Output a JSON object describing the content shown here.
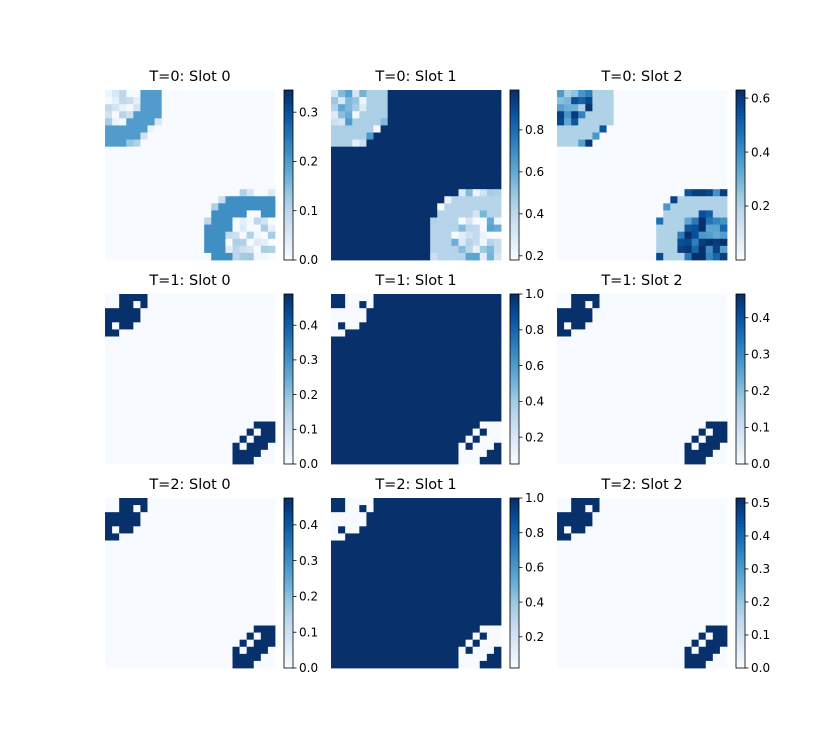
{
  "figure": {
    "grid_rows": 3,
    "grid_cols": 3,
    "colormap": "Blues",
    "colormap_stops": [
      "#f7fbff",
      "#deebf7",
      "#c6dbef",
      "#9ecae1",
      "#6baed6",
      "#4292c6",
      "#2171b5",
      "#08519c",
      "#08306b"
    ]
  },
  "chart_data": [
    {
      "type": "heatmap",
      "title": "T=0: Slot 0",
      "resolution": 24,
      "background": 0.0,
      "clim": [
        0.0,
        0.345
      ],
      "colorbar_ticks": [
        "0.0",
        "0.1",
        "0.2",
        "0.3"
      ],
      "colorbar_tick_values": [
        0.0,
        0.1,
        0.2,
        0.3
      ],
      "blobs": [
        {
          "center": [
            0.07,
            0.06
          ],
          "radius": 0.28,
          "fill": 0.06,
          "noise": 0.08,
          "ring_value": 0.2,
          "ring_width": 0.06
        },
        {
          "center": [
            0.87,
            0.88
          ],
          "radius": 0.3,
          "fill": 0.05,
          "noise": 0.08,
          "ring_value": 0.22,
          "ring_width": 0.06
        }
      ]
    },
    {
      "type": "heatmap",
      "title": "T=0: Slot 1",
      "resolution": 24,
      "background": 1.0,
      "clim": [
        0.18,
        0.99
      ],
      "colorbar_ticks": [
        "0.2",
        "0.4",
        "0.6",
        "0.8"
      ],
      "colorbar_tick_values": [
        0.2,
        0.4,
        0.6,
        0.8
      ],
      "blobs": [
        {
          "center": [
            0.07,
            0.06
          ],
          "radius": 0.28,
          "fill": 0.42,
          "noise": 0.25,
          "ring_value": 0.45,
          "ring_width": 0.06
        },
        {
          "center": [
            0.87,
            0.88
          ],
          "radius": 0.3,
          "fill": 0.38,
          "noise": 0.25,
          "ring_value": 0.42,
          "ring_width": 0.06
        }
      ]
    },
    {
      "type": "heatmap",
      "title": "T=0: Slot 2",
      "resolution": 24,
      "background": 0.0,
      "clim": [
        0.0,
        0.63
      ],
      "colorbar_ticks": [
        "0.2",
        "0.4",
        "0.6"
      ],
      "colorbar_tick_values": [
        0.2,
        0.4,
        0.6
      ],
      "blobs": [
        {
          "center": [
            0.07,
            0.06
          ],
          "radius": 0.28,
          "fill": 0.42,
          "noise": 0.22,
          "ring_value": 0.2,
          "ring_width": 0.06
        },
        {
          "center": [
            0.87,
            0.88
          ],
          "radius": 0.3,
          "fill": 0.5,
          "noise": 0.18,
          "ring_value": 0.2,
          "ring_width": 0.06
        }
      ]
    },
    {
      "type": "heatmap",
      "title": "T=1: Slot 0",
      "resolution": 24,
      "background": 0.0,
      "clim": [
        0.0,
        0.49
      ],
      "colorbar_ticks": [
        "0.0",
        "0.1",
        "0.2",
        "0.3",
        "0.4"
      ],
      "colorbar_tick_values": [
        0.0,
        0.1,
        0.2,
        0.3,
        0.4
      ],
      "blobs": [
        {
          "center": [
            0.0,
            0.0
          ],
          "radius": 0.2,
          "fill": 0.0,
          "noise": 0.0,
          "ring_value": 0.49,
          "ring_width": 0.045
        },
        {
          "center": [
            1.0,
            1.0
          ],
          "radius": 0.22,
          "fill": 0.0,
          "noise": 0.0,
          "ring_value": 0.49,
          "ring_width": 0.045
        }
      ]
    },
    {
      "type": "heatmap",
      "title": "T=1: Slot 1",
      "resolution": 24,
      "background": 1.0,
      "clim": [
        0.05,
        1.0
      ],
      "colorbar_ticks": [
        "0.2",
        "0.4",
        "0.6",
        "0.8",
        "1.0"
      ],
      "colorbar_tick_values": [
        0.2,
        0.4,
        0.6,
        0.8,
        1.0
      ],
      "blobs": [
        {
          "center": [
            0.0,
            0.0
          ],
          "radius": 0.2,
          "fill": 1.0,
          "noise": 0.0,
          "ring_value": 0.05,
          "ring_width": 0.045
        },
        {
          "center": [
            1.0,
            1.0
          ],
          "radius": 0.22,
          "fill": 1.0,
          "noise": 0.0,
          "ring_value": 0.05,
          "ring_width": 0.045
        }
      ]
    },
    {
      "type": "heatmap",
      "title": "T=1: Slot 2",
      "resolution": 24,
      "background": 0.0,
      "clim": [
        0.0,
        0.465
      ],
      "colorbar_ticks": [
        "0.0",
        "0.1",
        "0.2",
        "0.3",
        "0.4"
      ],
      "colorbar_tick_values": [
        0.0,
        0.1,
        0.2,
        0.3,
        0.4
      ],
      "blobs": [
        {
          "center": [
            0.0,
            0.0
          ],
          "radius": 0.2,
          "fill": 0.0,
          "noise": 0.0,
          "ring_value": 0.465,
          "ring_width": 0.045
        },
        {
          "center": [
            1.0,
            1.0
          ],
          "radius": 0.22,
          "fill": 0.0,
          "noise": 0.0,
          "ring_value": 0.465,
          "ring_width": 0.045
        }
      ]
    },
    {
      "type": "heatmap",
      "title": "T=2: Slot 0",
      "resolution": 24,
      "background": 0.0,
      "clim": [
        0.0,
        0.475
      ],
      "colorbar_ticks": [
        "0.0",
        "0.1",
        "0.2",
        "0.3",
        "0.4"
      ],
      "colorbar_tick_values": [
        0.0,
        0.1,
        0.2,
        0.3,
        0.4
      ],
      "blobs": [
        {
          "center": [
            0.0,
            0.0
          ],
          "radius": 0.2,
          "fill": 0.0,
          "noise": 0.0,
          "ring_value": 0.475,
          "ring_width": 0.045
        },
        {
          "center": [
            1.0,
            1.0
          ],
          "radius": 0.22,
          "fill": 0.0,
          "noise": 0.0,
          "ring_value": 0.475,
          "ring_width": 0.045
        }
      ]
    },
    {
      "type": "heatmap",
      "title": "T=2: Slot 1",
      "resolution": 24,
      "background": 1.0,
      "clim": [
        0.02,
        1.0
      ],
      "colorbar_ticks": [
        "0.2",
        "0.4",
        "0.6",
        "0.8",
        "1.0"
      ],
      "colorbar_tick_values": [
        0.2,
        0.4,
        0.6,
        0.8,
        1.0
      ],
      "blobs": [
        {
          "center": [
            0.0,
            0.0
          ],
          "radius": 0.2,
          "fill": 1.0,
          "noise": 0.0,
          "ring_value": 0.02,
          "ring_width": 0.045
        },
        {
          "center": [
            1.0,
            1.0
          ],
          "radius": 0.22,
          "fill": 1.0,
          "noise": 0.0,
          "ring_value": 0.02,
          "ring_width": 0.045
        }
      ]
    },
    {
      "type": "heatmap",
      "title": "T=2: Slot 2",
      "resolution": 24,
      "background": 0.0,
      "clim": [
        0.0,
        0.515
      ],
      "colorbar_ticks": [
        "0.0",
        "0.1",
        "0.2",
        "0.3",
        "0.4",
        "0.5"
      ],
      "colorbar_tick_values": [
        0.0,
        0.1,
        0.2,
        0.3,
        0.4,
        0.5
      ],
      "blobs": [
        {
          "center": [
            0.0,
            0.0
          ],
          "radius": 0.2,
          "fill": 0.0,
          "noise": 0.0,
          "ring_value": 0.515,
          "ring_width": 0.045
        },
        {
          "center": [
            1.0,
            1.0
          ],
          "radius": 0.22,
          "fill": 0.0,
          "noise": 0.0,
          "ring_value": 0.515,
          "ring_width": 0.045
        }
      ]
    }
  ]
}
